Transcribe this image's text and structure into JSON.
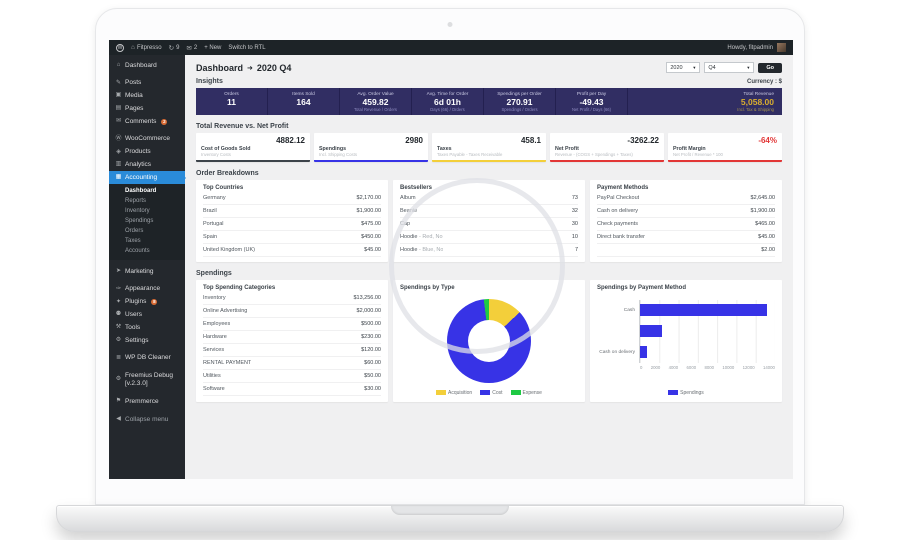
{
  "admin_bar": {
    "wp_logo": "W",
    "home_icon": "⌂",
    "site_name": "Fitpresso",
    "updates_icon": "↻",
    "updates_count": "9",
    "comments_icon": "✉",
    "comments_count": "2",
    "new_label": "+ New",
    "rtl_label": "Switch to RTL",
    "howdy": "Howdy, fitpadmin"
  },
  "sidebar": {
    "items": [
      {
        "label": "Dashboard",
        "icon": "⌂"
      },
      {
        "label": "Posts",
        "icon": "✎"
      },
      {
        "label": "Media",
        "icon": "▣"
      },
      {
        "label": "Pages",
        "icon": "▤"
      },
      {
        "label": "Comments",
        "icon": "✉",
        "badge": "2"
      },
      {
        "label": "WooCommerce",
        "icon": "Ⓦ"
      },
      {
        "label": "Products",
        "icon": "◈"
      },
      {
        "label": "Analytics",
        "icon": "▥"
      },
      {
        "label": "Accounting",
        "icon": "▦"
      },
      {
        "label": "Marketing",
        "icon": "➤"
      },
      {
        "label": "Appearance",
        "icon": "✑"
      },
      {
        "label": "Plugins",
        "icon": "✦",
        "badge": "8"
      },
      {
        "label": "Users",
        "icon": "⚉"
      },
      {
        "label": "Tools",
        "icon": "⚒"
      },
      {
        "label": "Settings",
        "icon": "⚙"
      },
      {
        "label": "WP DB Cleaner",
        "icon": "≣"
      },
      {
        "label": "Freemius Debug [v.2.3.0]",
        "icon": "⚙"
      },
      {
        "label": "Premmerce",
        "icon": "⚑"
      },
      {
        "label": "Collapse menu",
        "icon": "◀"
      }
    ],
    "accounting_submenu": [
      "Dashboard",
      "Reports",
      "Inventory",
      "Spendings",
      "Orders",
      "Taxes",
      "Accounts"
    ]
  },
  "header": {
    "title": "Dashboard",
    "arrow": "➜",
    "period": "2020 Q4",
    "year": "2020",
    "quarter": "Q4",
    "dropdown_icon": "▼",
    "go_label": "Go"
  },
  "insights": {
    "heading": "Insights",
    "currency_label": "Currency : $",
    "cells": [
      {
        "title": "Orders",
        "value": "11",
        "sub": ""
      },
      {
        "title": "Items Sold",
        "value": "164",
        "sub": ""
      },
      {
        "title": "Avg. Order Value",
        "value": "459.82",
        "sub": "Total Revenue / Orders"
      },
      {
        "title": "Avg. Time for Order",
        "value": "6d 01h",
        "sub": "Days (66) / Orders"
      },
      {
        "title": "Spendings per Order",
        "value": "270.91",
        "sub": "Spendings / Orders"
      },
      {
        "title": "Profit per Day",
        "value": "-49.43",
        "sub": "Net Profit / Days (66)"
      }
    ],
    "total": {
      "title": "Total Revenue",
      "value": "5,058.00",
      "sub": "Incl. Tax & Shipping"
    }
  },
  "revenue_section": {
    "heading": "Total Revenue vs. Net Profit",
    "cards": [
      {
        "label": "Cost of Goods Sold",
        "value": "4882.12",
        "sub": "Inventory Costs",
        "color": "#3c434a"
      },
      {
        "label": "Spendings",
        "value": "2980",
        "sub": "Incl. Shipping Costs",
        "color": "#3733e6"
      },
      {
        "label": "Taxes",
        "value": "458.1",
        "sub": "Taxes Payable - Taxes Receivable",
        "color": "#f3cf3a"
      },
      {
        "label": "Net Profit",
        "value": "-3262.22",
        "sub": "Revenue - (COGS + Spendings + Taxes)",
        "color": "#e23636"
      },
      {
        "label": "Profit Margin",
        "value": "-64%",
        "sub": "Net Profit / Revenue * 100",
        "color": "#e23636",
        "value_color": "#e23636"
      }
    ]
  },
  "order_breakdowns": {
    "heading": "Order Breakdowns",
    "top_countries": {
      "title": "Top Countries",
      "rows": [
        [
          "Germany",
          "$2,170.00"
        ],
        [
          "Brazil",
          "$1,900.00"
        ],
        [
          "Portugal",
          "$475.00"
        ],
        [
          "Spain",
          "$450.00"
        ],
        [
          "United Kingdom (UK)",
          "$45.00"
        ]
      ]
    },
    "bestsellers": {
      "title": "Bestsellers",
      "rows": [
        {
          "name": "Album",
          "variant": "",
          "value": "73"
        },
        {
          "name": "Beanie",
          "variant": "",
          "value": "32"
        },
        {
          "name": "Cap",
          "variant": "",
          "value": "30"
        },
        {
          "name": "Hoodie",
          "variant": " - Red, No",
          "value": "10"
        },
        {
          "name": "Hoodie",
          "variant": " - Blue, No",
          "value": "7"
        }
      ]
    },
    "payment_methods": {
      "title": "Payment Methods",
      "rows": [
        [
          "PayPal Checkout",
          "$2,645.00"
        ],
        [
          "Cash on delivery",
          "$1,900.00"
        ],
        [
          "Check payments",
          "$465.00"
        ],
        [
          "Direct bank transfer",
          "$45.00"
        ],
        [
          "",
          "$2.00"
        ]
      ]
    }
  },
  "spendings_section": {
    "heading": "Spendings",
    "top_categories": {
      "title": "Top Spending Categories",
      "rows": [
        [
          "Inventory",
          "$13,256.00"
        ],
        [
          "Online Advertising",
          "$2,000.00"
        ],
        [
          "Employees",
          "$500.00"
        ],
        [
          "Hardware",
          "$230.00"
        ],
        [
          "Services",
          "$120.00"
        ],
        [
          "RENTAL PAYMENT",
          "$60.00"
        ],
        [
          "Utilities",
          "$50.00"
        ],
        [
          "Software",
          "$30.00"
        ]
      ]
    },
    "by_type_title": "Spendings by Type",
    "by_payment_title": "Spendings by Payment Method"
  },
  "chart_data": [
    {
      "type": "pie",
      "donut": true,
      "title": "Spendings by Type",
      "labels": [
        "Acquisition",
        "Cost",
        "Expense"
      ],
      "values_percent": [
        13,
        85,
        2
      ],
      "colors": [
        "#f3cf3a",
        "#3733e6",
        "#1ec943"
      ],
      "legend_position": "bottom"
    },
    {
      "type": "bar",
      "orientation": "horizontal",
      "title": "Spendings by Payment Method",
      "categories": [
        "Cash",
        "",
        "Cash on delivery"
      ],
      "values": [
        13200,
        2300,
        700
      ],
      "xlim": [
        0,
        14000
      ],
      "xticks": [
        0,
        2000,
        4000,
        6000,
        8000,
        10000,
        12000,
        14000
      ],
      "series_label": "Spendings",
      "color": "#3733e6",
      "grid": true,
      "legend_position": "bottom"
    }
  ],
  "colors": {
    "accent_active_menu": "#2a8bd9",
    "insights_bg": "#312e63",
    "gold": "#d9ae2f",
    "chart_blue": "#3733e6",
    "chart_yellow": "#f3cf3a",
    "chart_green": "#1ec943",
    "negative_red": "#e23636",
    "badge_orange": "#d86a33"
  }
}
